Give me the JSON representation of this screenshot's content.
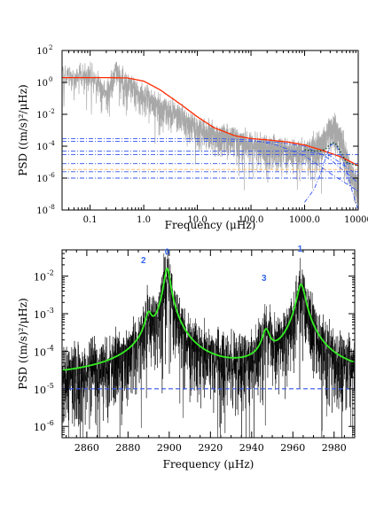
{
  "colors": {
    "data_gray": "#a8a8a8",
    "data_black": "#000000",
    "fit_red": "#ff2a00",
    "fit_green": "#33ee22",
    "component_blue": "#3355ee",
    "background_orange": "#ffbb66",
    "mode_label_blue": "#3366ee"
  },
  "chart_data": [
    {
      "type": "line",
      "x_scale": "log",
      "y_scale": "log",
      "xlim": [
        0.03,
        10000
      ],
      "ylim": [
        1e-08,
        100
      ],
      "xlabel": "Frequency (μHz)",
      "ylabel": "PSD ((m/s)²/μHz)",
      "x_ticks": [
        "0.1",
        "1.0",
        "10.0",
        "100.0",
        "1000.0",
        "10000"
      ],
      "x_tick_values": [
        0.1,
        1,
        10,
        100,
        1000,
        10000
      ],
      "y_ticks": [
        "10",
        "10",
        "10",
        "10",
        "10",
        "10"
      ],
      "y_tick_exponents": [
        "2",
        "0",
        "-2",
        "-4",
        "-6",
        "-8"
      ],
      "y_tick_values": [
        100,
        1,
        0.01,
        0.0001,
        1e-06,
        1e-08
      ],
      "series": [
        {
          "style": "gray",
          "x": [
            0.03,
            0.05,
            0.1,
            0.2,
            0.3,
            0.5,
            1,
            2,
            3,
            5,
            10,
            20,
            50,
            100,
            200,
            500,
            1000,
            2000,
            3000,
            3500,
            5000,
            7000,
            10000
          ],
          "y": [
            10,
            3,
            5,
            0.3,
            8,
            1,
            0.2,
            0.05,
            0.03,
            0.008,
            0.002,
            0.0008,
            0.0004,
            0.0002,
            0.00012,
            8e-05,
            6e-05,
            0.0002,
            0.002,
            0.003,
            0.0005,
            5e-06,
            5e-07
          ]
        },
        {
          "style": "red",
          "x": [
            0.03,
            0.05,
            0.1,
            0.2,
            0.5,
            1,
            2,
            5,
            10,
            20,
            50,
            100,
            200,
            500,
            1000,
            2000,
            5000,
            10000
          ],
          "y": [
            2,
            2,
            2,
            2,
            1.9,
            1.2,
            0.35,
            0.04,
            0.007,
            0.0015,
            0.00045,
            0.0003,
            0.00025,
            0.00018,
            0.00012,
            6e-05,
            2e-05,
            6e-06
          ]
        },
        {
          "style": "blue-dashdot",
          "x": [
            0.03,
            10000
          ],
          "y": [
            3e-05,
            3e-05
          ]
        },
        {
          "style": "blue-dashdot",
          "x": [
            0.03,
            10000
          ],
          "y": [
            8e-06,
            8e-06
          ]
        },
        {
          "style": "blue-dashdot",
          "x": [
            0.03,
            10000
          ],
          "y": [
            2.5e-06,
            2.5e-06
          ]
        },
        {
          "style": "blue-dashdot",
          "x": [
            0.03,
            10000
          ],
          "y": [
            1e-06,
            1e-06
          ]
        },
        {
          "style": "blue-dashdot",
          "x": [
            0.03,
            10,
            30,
            100,
            300,
            1000,
            3000,
            10000
          ],
          "y": [
            0.0003,
            0.0003,
            0.00029,
            0.00025,
            0.00012,
            2.5e-05,
            2e-06,
            1.5e-07
          ]
        },
        {
          "style": "blue-dashdot",
          "x": [
            0.03,
            100,
            300,
            1000,
            3000,
            10000
          ],
          "y": [
            0.0002,
            0.0002,
            0.00018,
            0.0001,
            1.5e-05,
            5e-07
          ]
        },
        {
          "style": "blue-dashdot",
          "x": [
            0.03,
            300,
            1000,
            3000,
            10000
          ],
          "y": [
            5e-05,
            5e-05,
            4.8e-05,
            2.5e-05,
            1.5e-06
          ]
        },
        {
          "style": "blue-dashdot",
          "x": [
            1000,
            1500,
            2000,
            2500,
            3000,
            3500,
            4000,
            5000,
            6000,
            8000,
            10000
          ],
          "y": [
            3e-08,
            2e-07,
            2e-06,
            2e-05,
            0.00011,
            0.00015,
            0.0001,
            2e-05,
            3e-06,
            1e-07,
            1e-08
          ]
        },
        {
          "style": "orange",
          "x": [
            0.03,
            10000
          ],
          "y": [
            3.5e-06,
            3.5e-06
          ]
        },
        {
          "style": "green-dotted",
          "x": [
            1000,
            1500,
            2000,
            2500,
            3000,
            3500,
            4000,
            5000,
            6000,
            8000,
            10000
          ],
          "y": [
            6e-05,
            5e-05,
            5e-05,
            7e-05,
            0.00013,
            0.00017,
            0.00012,
            3e-05,
            1e-05,
            7e-06,
            6e-06
          ]
        }
      ]
    },
    {
      "type": "line",
      "y_scale": "log",
      "xlim": [
        2848,
        2990
      ],
      "ylim": [
        5e-07,
        0.05
      ],
      "xlabel": "Frequency (μHz)",
      "ylabel": "PSD ((m/s)²/μHz)",
      "x_ticks": [
        "2860",
        "2880",
        "2900",
        "2920",
        "2940",
        "2960",
        "2980"
      ],
      "x_tick_values": [
        2860,
        2880,
        2900,
        2920,
        2940,
        2960,
        2980
      ],
      "y_ticks": [
        "10",
        "10",
        "10",
        "10",
        "10"
      ],
      "y_tick_exponents": [
        "-2",
        "-3",
        "-4",
        "-5",
        "-6"
      ],
      "y_tick_values": [
        0.01,
        0.001,
        0.0001,
        1e-05,
        1e-06
      ],
      "annotations": [
        {
          "text": "2",
          "x": 2887.5,
          "y": 0.022
        },
        {
          "text": "0",
          "x": 2899,
          "y": 0.037
        },
        {
          "text": "3",
          "x": 2946,
          "y": 0.0075
        },
        {
          "text": "1",
          "x": 2963.5,
          "y": 0.045
        }
      ],
      "modes": [
        {
          "center": 2890,
          "height": 0.0008,
          "width": 1.6
        },
        {
          "center": 2899,
          "height": 0.016,
          "width": 1.3
        },
        {
          "center": 2947,
          "height": 0.0003,
          "width": 1.8
        },
        {
          "center": 2964,
          "height": 0.006,
          "width": 1.8
        }
      ],
      "background_level": 1e-05,
      "series": [
        {
          "style": "black",
          "description_of_shape": "noisy power spectrum"
        },
        {
          "style": "green",
          "x": [
            2848,
            2870,
            2885,
            2890,
            2895,
            2899,
            2903,
            2915,
            2935,
            2943,
            2947,
            2952,
            2960,
            2964,
            2970,
            2980,
            2990
          ],
          "y": [
            2e-05,
            2.5e-05,
            0.0001,
            0.0008,
            0.0001,
            0.016,
            0.0002,
            3e-05,
            2.5e-05,
            0.0001,
            0.0003,
            8e-05,
            0.0002,
            0.006,
            0.0002,
            4e-05,
            2e-05
          ]
        },
        {
          "style": "blue-dashed",
          "x": [
            2848,
            2990
          ],
          "y": [
            1e-05,
            1e-05
          ]
        }
      ]
    }
  ]
}
